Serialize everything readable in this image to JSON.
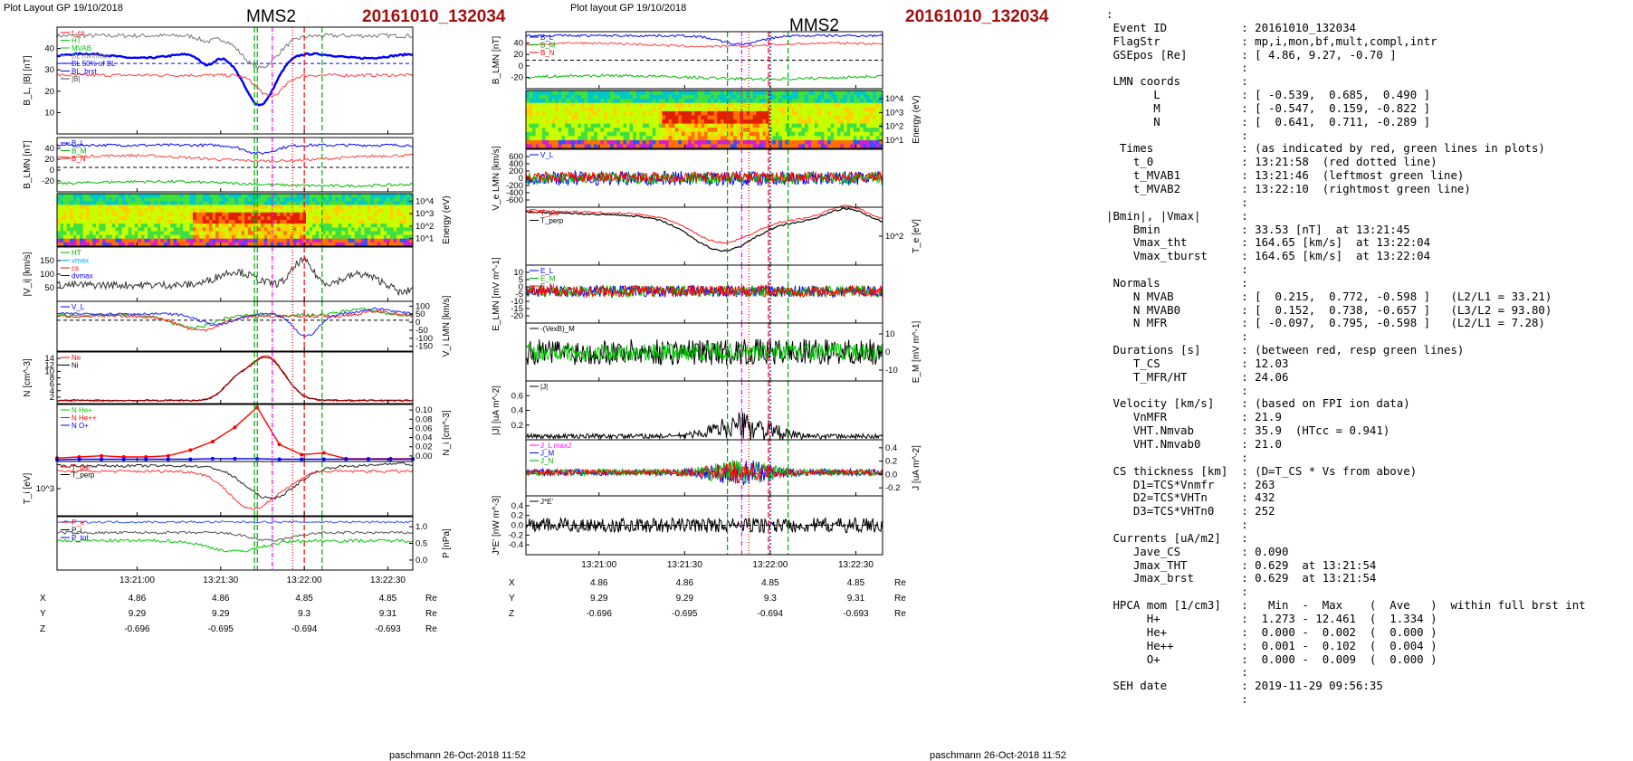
{
  "header": {
    "left_title": "Plot Layout GP 19/10/2018",
    "mid_title": "Plot layout GP 19/10/2018",
    "spacecraft": "MMS2",
    "event": "20161010_132034"
  },
  "footer": {
    "left": "paschmann 26-Oct-2018 11:52",
    "mid": "paschmann 26-Oct-2018 11:52"
  },
  "colors": {
    "event": "#a01010",
    "blue": "#0000ff",
    "red": "#ff0000",
    "green": "#00bb00",
    "magenta": "#ff00ff",
    "dark_red": "#990000"
  },
  "chart_data": [
    {
      "type": "line",
      "title": "Plot Layout GP 19/10/2018",
      "time_ticks": [
        "13:21:00",
        "13:21:30",
        "13:22:00",
        "13:22:30"
      ],
      "panels": [
        {
          "ylabel": "B_L, |B| [nT]",
          "yticks": [
            "10",
            "20",
            "30",
            "40"
          ],
          "legend": [
            "t_cs",
            "HT",
            "MVAB",
            "BL min/max",
            "BL 50% of BL",
            "BL_brst",
            "|B|"
          ]
        },
        {
          "ylabel": "B_LMN [nT]",
          "yticks": [
            "-20",
            "0",
            "20",
            "40"
          ],
          "legend": [
            "B_L",
            "B_M",
            "B_N"
          ]
        },
        {
          "ylabel": "Energy (eV)",
          "type": "heatmap",
          "yticks_right": [
            "10^4",
            "10^3",
            "10^2",
            "10^1"
          ]
        },
        {
          "ylabel": "|V_i| [km/s]",
          "yticks": [
            "50",
            "100",
            "150"
          ],
          "legend": [
            "HT",
            "vmax",
            "cs",
            "dvmax"
          ]
        },
        {
          "ylabel": "V_i LMN [km/s]",
          "yticks_right": [
            "100",
            "50",
            "0",
            "-50",
            "-100",
            "-150"
          ],
          "legend": [
            "V_L"
          ]
        },
        {
          "ylabel": "N [cm^-3]",
          "yticks": [
            "2",
            "4",
            "6",
            "8",
            "10",
            "12",
            "14"
          ],
          "legend": [
            "Ne",
            "Ni"
          ]
        },
        {
          "ylabel": "N_i [cm^-3]",
          "yticks_right": [
            "0.10",
            "0.08",
            "0.06",
            "0.04",
            "0.02",
            "0.00"
          ],
          "legend": [
            "N He+",
            "N He++",
            "N O+"
          ]
        },
        {
          "ylabel": "T_i [eV]",
          "yticks": [
            "10^3"
          ],
          "legend": [
            "T_par",
            "T_perp"
          ]
        },
        {
          "ylabel": "P [nPa]",
          "yticks_right": [
            "1.0",
            "0.5",
            "0.0"
          ],
          "legend": [
            "P_e",
            "P_i",
            "P_tot"
          ]
        }
      ],
      "ephemeris": {
        "rows": [
          {
            "label": "X",
            "values": [
              "4.86",
              "4.86",
              "4.85",
              "4.85"
            ],
            "unit": "Re"
          },
          {
            "label": "Y",
            "values": [
              "9.29",
              "9.29",
              "9.3",
              "9.31"
            ],
            "unit": "Re"
          },
          {
            "label": "Z",
            "values": [
              "-0.696",
              "-0.695",
              "-0.694",
              "-0.693"
            ],
            "unit": "Re"
          }
        ]
      }
    },
    {
      "type": "line",
      "title": "Plot layout GP 19/10/2018",
      "time_ticks": [
        "13:21:00",
        "13:21:30",
        "13:22:00",
        "13:22:30"
      ],
      "panels": [
        {
          "ylabel": "B_LMN [nT]",
          "yticks": [
            "-20",
            "0",
            "20",
            "40"
          ],
          "legend": [
            "B_L",
            "B_M",
            "B_N"
          ]
        },
        {
          "ylabel": "Energy (eV)",
          "type": "heatmap",
          "yticks_right": [
            "10^4",
            "10^3",
            "10^2",
            "10^1"
          ]
        },
        {
          "ylabel": "V_e LMN [km/s]",
          "yticks": [
            "-600",
            "-400",
            "-200",
            "0",
            "200",
            "400",
            "600"
          ],
          "legend": [
            "V_L"
          ]
        },
        {
          "ylabel": "T_e [eV]",
          "yticks_right": [
            "10^2"
          ],
          "legend": [
            "T_par",
            "T_perp"
          ]
        },
        {
          "ylabel": "E_LMN [mV m^-1]",
          "yticks": [
            "-20",
            "-15",
            "-10",
            "-5",
            "0",
            "5",
            "10"
          ],
          "legend": [
            "E_L",
            "E_M",
            "E_N"
          ]
        },
        {
          "ylabel": "E_M [mV m^-1]",
          "yticks_right": [
            "10",
            "0",
            "-10"
          ],
          "legend": [
            "-(VexB)_M"
          ]
        },
        {
          "ylabel": "|J| [uA m^-2]",
          "yticks": [
            "0.2",
            "0.4",
            "0.6"
          ],
          "legend": [
            "|J|"
          ]
        },
        {
          "ylabel": "J [uA m^-2]",
          "yticks_right": [
            "0.4",
            "0.2",
            "0.0",
            "-0.2"
          ],
          "legend": [
            "J_L maxJ",
            "J_M",
            "J_N"
          ]
        },
        {
          "ylabel": "J*E' [nW m^-3]",
          "yticks": [
            "-0.4",
            "-0.2",
            "0.0",
            "0.2",
            "0.4"
          ],
          "legend": [
            "J*E'"
          ]
        }
      ],
      "ephemeris": {
        "rows": [
          {
            "label": "X",
            "values": [
              "4.86",
              "4.86",
              "4.85",
              "4.85"
            ],
            "unit": "Re"
          },
          {
            "label": "Y",
            "values": [
              "9.29",
              "9.29",
              "9.3",
              "9.31"
            ],
            "unit": "Re"
          },
          {
            "label": "Z",
            "values": [
              "-0.696",
              "-0.695",
              "-0.694",
              "-0.693"
            ],
            "unit": "Re"
          }
        ]
      }
    }
  ],
  "info_lines": [
    ":",
    " Event ID           : 20161010_132034",
    " FlagStr            : mp,i,mon,bf,mult,compl,intr",
    " GSEpos [Re]        : [ 4.86, 9.27, -0.70 ]",
    "                    :",
    " LMN coords         :",
    "       L            : [ -0.539,  0.685,  0.490 ]",
    "       M            : [ -0.547,  0.159, -0.822 ]",
    "       N            : [  0.641,  0.711, -0.289 ]",
    "                    :",
    "  Times             : (as indicated by red, green lines in plots)",
    "    t_0             : 13:21:58  (red dotted line)",
    "    t_MVAB1         : 13:21:46  (leftmost green line)",
    "    t_MVAB2         : 13:22:10  (rightmost green line)",
    "                    :",
    "|Bmin|, |Vmax|      :",
    "    Bmin            : 33.53 [nT]  at 13:21:45",
    "    Vmax_tht        : 164.65 [km/s]  at 13:22:04",
    "    Vmax_tburst     : 164.65 [km/s]  at 13:22:04",
    "                    :",
    " Normals            :",
    "    N MVAB          : [  0.215,  0.772, -0.598 ]   (L2/L1 = 33.21)",
    "    N MVAB0         : [  0.152,  0.738, -0.657 ]   (L3/L2 = 93.80)",
    "    N MFR           : [ -0.097,  0.795, -0.598 ]   (L2/L1 = 7.28)",
    "                    :",
    " Durations [s]      : (between red, resp green lines)",
    "    T_CS            : 12.03",
    "    T_MFR/HT        : 24.06",
    "                    :",
    " Velocity [km/s]    : (based on FPI ion data)",
    "    VnMFR           : 21.9",
    "    VHT.Nmvab       : 35.9  (HTcc = 0.941)",
    "    VHT.Nmvab0      : 21.0",
    "                    :",
    " CS thickness [km]  : (D=T_CS * Vs from above)",
    "    D1=TCS*Vnmfr    : 263",
    "    D2=TCS*VHTn     : 432",
    "    D3=TCS*VHTn0    : 252",
    "                    :",
    " Currents [uA/m2]   :",
    "    Jave_CS         : 0.090",
    "    Jmax_THT        : 0.629  at 13:21:54",
    "    Jmax_brst       : 0.629  at 13:21:54",
    "                    :",
    " HPCA mom [1/cm3]   :   Min  -  Max    (  Ave   )  within full brst int",
    "      H+            :  1.273 - 12.461  (  1.334 )",
    "      He+           :  0.000 -  0.002  (  0.000 )",
    "      He++          :  0.001 -  0.102  (  0.004 )",
    "      O+            :  0.000 -  0.009  (  0.000 )",
    "                    :",
    " SEH date           : 2019-11-29 09:56:35",
    "                    :"
  ]
}
